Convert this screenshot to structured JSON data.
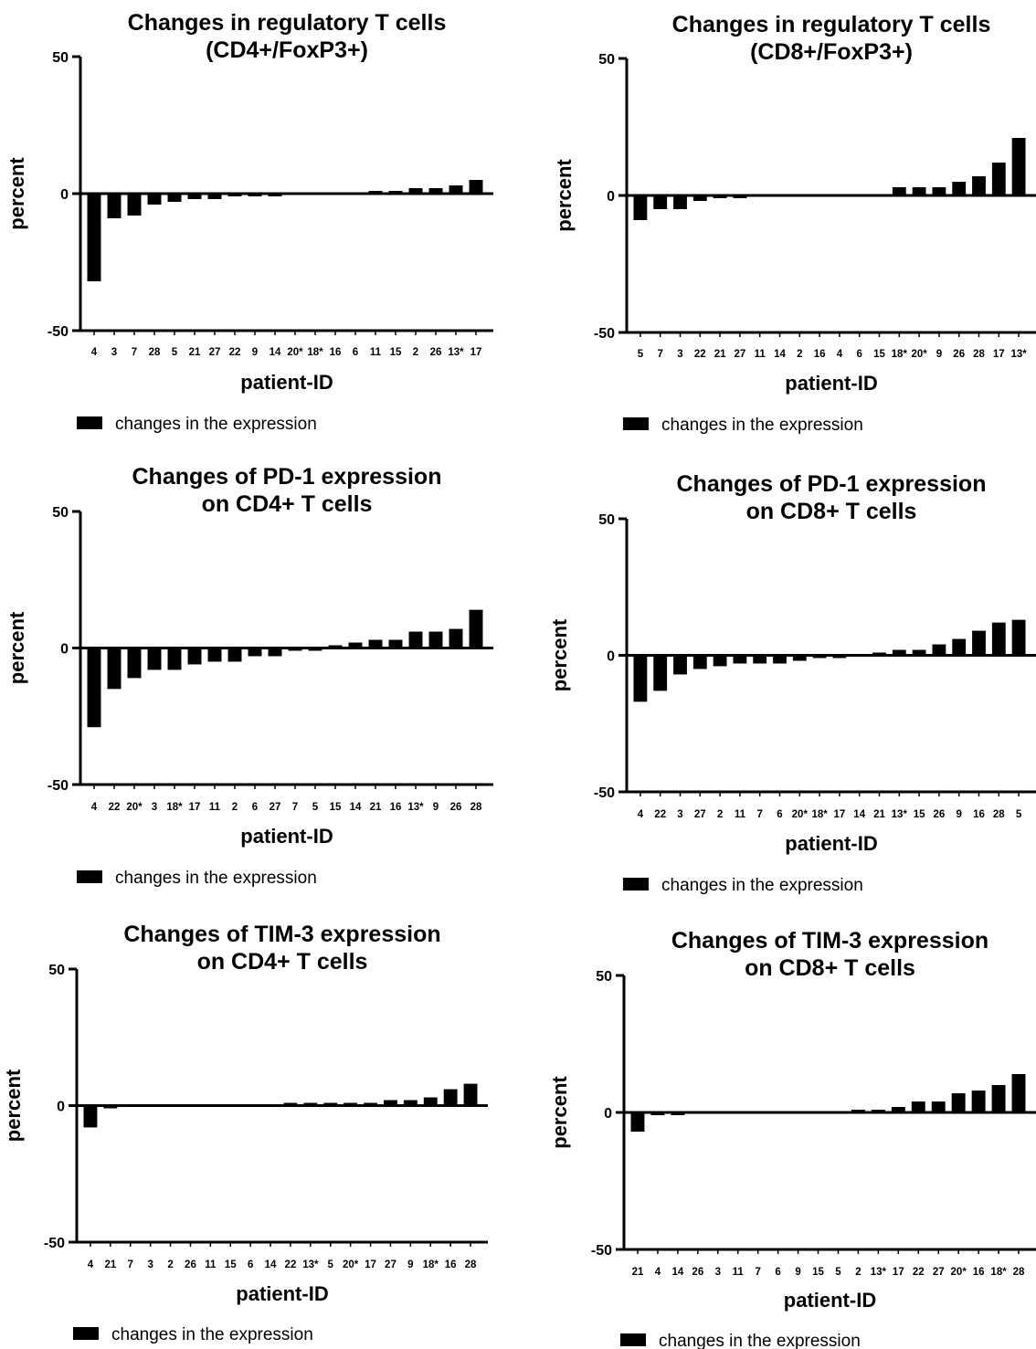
{
  "chart_data": [
    {
      "type": "bar",
      "title": "Changes in regulatory T cells\n(CD4+/FoxP3+)",
      "xlabel": "patient-ID",
      "ylabel": "percent",
      "ylim": [
        -50,
        50
      ],
      "yticks": [
        "50",
        "0",
        "-50"
      ],
      "legend": "changes in the expression",
      "categories": [
        "4",
        "3",
        "7",
        "28",
        "5",
        "21",
        "27",
        "22",
        "9",
        "14",
        "20*",
        "18*",
        "16",
        "6",
        "11",
        "15",
        "2",
        "26",
        "13*",
        "17"
      ],
      "series": [
        {
          "values": [
            -32,
            -9,
            -8,
            -4,
            -3,
            -2,
            -2,
            -1,
            -0.5,
            -0.5,
            0,
            0,
            0,
            0,
            0.5,
            0.5,
            2,
            2,
            3,
            5
          ]
        }
      ]
    },
    {
      "type": "bar",
      "title": "Changes in regulatory T cells\n(CD8+/FoxP3+)",
      "xlabel": "patient-ID",
      "ylabel": "percent",
      "ylim": [
        -50,
        50
      ],
      "yticks": [
        "50",
        "0",
        "-50"
      ],
      "legend": "changes in the expression",
      "categories": [
        "5",
        "7",
        "3",
        "22",
        "21",
        "27",
        "11",
        "14",
        "2",
        "16",
        "4",
        "6",
        "15",
        "18*",
        "20*",
        "9",
        "26",
        "28",
        "17",
        "13*"
      ],
      "series": [
        {
          "values": [
            -9,
            -5,
            -5,
            -2,
            -1,
            -0.5,
            0,
            0,
            0,
            0,
            0,
            0,
            0,
            3,
            3,
            3,
            5,
            7,
            12,
            21
          ]
        }
      ]
    },
    {
      "type": "bar",
      "title": "Changes of PD-1 expression\non CD4+ T cells",
      "xlabel": "patient-ID",
      "ylabel": "percent",
      "ylim": [
        -50,
        50
      ],
      "yticks": [
        "50",
        "0",
        "-50"
      ],
      "legend": "changes in the expression",
      "categories": [
        "4",
        "22",
        "20*",
        "3",
        "18*",
        "17",
        "11",
        "2",
        "6",
        "27",
        "7",
        "5",
        "15",
        "14",
        "21",
        "16",
        "13*",
        "9",
        "26",
        "28"
      ],
      "series": [
        {
          "values": [
            -29,
            -15,
            -11,
            -8,
            -8,
            -6,
            -5,
            -5,
            -3,
            -3,
            -1,
            -0.5,
            0.5,
            2,
            3,
            3,
            6,
            6,
            7,
            14
          ]
        }
      ]
    },
    {
      "type": "bar",
      "title": "Changes of PD-1 expression\non CD8+ T cells",
      "xlabel": "patient-ID",
      "ylabel": "percent",
      "ylim": [
        -50,
        50
      ],
      "yticks": [
        "50",
        "0",
        "-50"
      ],
      "legend": "changes in the expression",
      "categories": [
        "4",
        "22",
        "3",
        "27",
        "2",
        "11",
        "7",
        "6",
        "20*",
        "18*",
        "17",
        "14",
        "21",
        "13*",
        "15",
        "26",
        "9",
        "16",
        "28",
        "5"
      ],
      "series": [
        {
          "values": [
            -17,
            -13,
            -7,
            -5,
            -4,
            -3,
            -3,
            -3,
            -2,
            -1,
            -0.5,
            0,
            1,
            2,
            2,
            4,
            6,
            9,
            12,
            13
          ]
        }
      ]
    },
    {
      "type": "bar",
      "title": "Changes of TIM-3 expression\non CD4+ T cells",
      "xlabel": "patient-ID",
      "ylabel": "percent",
      "ylim": [
        -50,
        50
      ],
      "yticks": [
        "50",
        "0",
        "-50"
      ],
      "legend": "changes in the expression",
      "categories": [
        "4",
        "21",
        "7",
        "3",
        "2",
        "26",
        "11",
        "15",
        "6",
        "14",
        "22",
        "13*",
        "5",
        "20*",
        "17",
        "27",
        "9",
        "18*",
        "16",
        "28"
      ],
      "series": [
        {
          "values": [
            -8,
            -1,
            0,
            0,
            0,
            0,
            0,
            0,
            0,
            0,
            0.5,
            0.5,
            0.5,
            0.5,
            0.5,
            2,
            2,
            3,
            6,
            8
          ]
        }
      ]
    },
    {
      "type": "bar",
      "title": "Changes of TIM-3 expression\non CD8+ T cells",
      "xlabel": "patient-ID",
      "ylabel": "percent",
      "ylim": [
        -50,
        50
      ],
      "yticks": [
        "50",
        "0",
        "-50"
      ],
      "legend": "changes in the expression",
      "categories": [
        "21",
        "4",
        "14",
        "26",
        "3",
        "11",
        "7",
        "6",
        "9",
        "15",
        "5",
        "2",
        "13*",
        "17",
        "22",
        "27",
        "20*",
        "16",
        "18*",
        "28"
      ],
      "series": [
        {
          "values": [
            -7,
            -1,
            -1,
            0,
            0,
            0,
            0,
            0,
            0,
            0,
            0,
            0.5,
            0.5,
            2,
            4,
            4,
            7,
            8,
            10,
            14
          ]
        }
      ]
    }
  ]
}
